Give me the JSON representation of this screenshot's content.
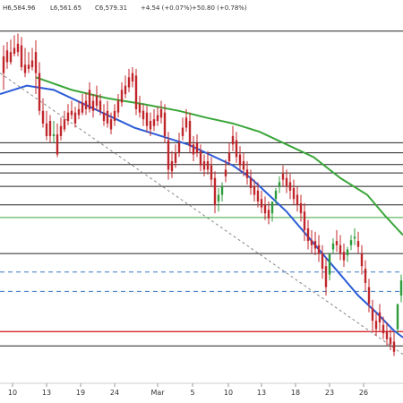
{
  "header": {
    "high": "H6,584.96",
    "low": "L6,561.65",
    "close": "C6,579.31",
    "change": "+4.54 (+0.07%)",
    "change2": "+50.80 (+0.78%)"
  },
  "colors": {
    "up": "#2e9b3a",
    "down": "#c0262b",
    "ma_blue": "#2a5bd7",
    "ma_green": "#3aa63a",
    "hline_black": "#222222",
    "hline_green": "#3aa63a",
    "hline_blue_dashed": "#3b78c4",
    "hline_red": "#d6242a",
    "trend_gray": "#888888"
  },
  "chart_data": {
    "type": "candlestick",
    "x_ticks": [
      "10",
      "13",
      "19",
      "24",
      "Mar",
      "5",
      "10",
      "13",
      "18",
      "23",
      "26"
    ],
    "y_range": [
      6560,
      6975
    ],
    "moving_averages": [
      {
        "color_key": "ma_blue",
        "points": [
          [
            0,
            6880
          ],
          [
            30,
            6890
          ],
          [
            60,
            6885
          ],
          [
            90,
            6870
          ],
          [
            120,
            6855
          ],
          [
            150,
            6840
          ],
          [
            180,
            6830
          ],
          [
            210,
            6820
          ],
          [
            240,
            6805
          ],
          [
            260,
            6795
          ],
          [
            280,
            6780
          ],
          [
            300,
            6760
          ],
          [
            320,
            6740
          ],
          [
            340,
            6715
          ],
          [
            360,
            6690
          ],
          [
            380,
            6665
          ],
          [
            400,
            6640
          ],
          [
            420,
            6620
          ],
          [
            440,
            6598
          ],
          [
            450,
            6590
          ]
        ]
      },
      {
        "color_key": "ma_green",
        "points": [
          [
            40,
            6900
          ],
          [
            80,
            6885
          ],
          [
            120,
            6875
          ],
          [
            160,
            6868
          ],
          [
            200,
            6860
          ],
          [
            230,
            6852
          ],
          [
            260,
            6845
          ],
          [
            290,
            6835
          ],
          [
            320,
            6820
          ],
          [
            350,
            6805
          ],
          [
            380,
            6780
          ],
          [
            410,
            6760
          ],
          [
            430,
            6735
          ],
          [
            450,
            6712
          ]
        ]
      }
    ],
    "horizontal_levels": [
      {
        "value": 6955,
        "color_key": "hline_black",
        "style": "solid"
      },
      {
        "value": 6822,
        "color_key": "hline_black",
        "style": "solid"
      },
      {
        "value": 6810,
        "color_key": "hline_black",
        "style": "solid"
      },
      {
        "value": 6796,
        "color_key": "hline_black",
        "style": "solid"
      },
      {
        "value": 6786,
        "color_key": "hline_black",
        "style": "solid"
      },
      {
        "value": 6770,
        "color_key": "hline_black",
        "style": "solid"
      },
      {
        "value": 6748,
        "color_key": "hline_black",
        "style": "solid"
      },
      {
        "value": 6733,
        "color_key": "hline_green",
        "style": "solid"
      },
      {
        "value": 6690,
        "color_key": "hline_black",
        "style": "solid"
      },
      {
        "value": 6668,
        "color_key": "hline_blue_dashed",
        "style": "dashed"
      },
      {
        "value": 6645,
        "color_key": "hline_blue_dashed",
        "style": "dashed"
      },
      {
        "value": 6597,
        "color_key": "hline_red",
        "style": "solid"
      },
      {
        "value": 6580,
        "color_key": "hline_black",
        "style": "solid"
      }
    ],
    "trendline": {
      "from": [
        0,
        6905
      ],
      "to": [
        450,
        6570
      ],
      "color_key": "trend_gray",
      "style": "dashed"
    },
    "candles": [
      [
        4,
        6925,
        6938,
        6905,
        6885
      ],
      [
        8,
        6932,
        6942,
        6918,
        6910
      ],
      [
        12,
        6930,
        6945,
        6918,
        6915
      ],
      [
        16,
        6935,
        6950,
        6928,
        6925
      ],
      [
        20,
        6940,
        6952,
        6930,
        6925
      ],
      [
        24,
        6938,
        6948,
        6912,
        6908
      ],
      [
        28,
        6915,
        6935,
        6905,
        6900
      ],
      [
        32,
        6915,
        6930,
        6910,
        6905
      ],
      [
        36,
        6920,
        6935,
        6912,
        6908
      ],
      [
        40,
        6930,
        6944,
        6905,
        6880
      ],
      [
        44,
        6905,
        6918,
        6860,
        6855
      ],
      [
        48,
        6860,
        6875,
        6845,
        6840
      ],
      [
        52,
        6845,
        6860,
        6830,
        6825
      ],
      [
        56,
        6848,
        6855,
        6830,
        6822
      ],
      [
        60,
        6830,
        6848,
        6832,
        6822
      ],
      [
        64,
        6832,
        6845,
        6808,
        6805
      ],
      [
        68,
        6842,
        6852,
        6830,
        6825
      ],
      [
        72,
        6850,
        6860,
        6838,
        6835
      ],
      [
        76,
        6858,
        6868,
        6848,
        6843
      ],
      [
        80,
        6860,
        6872,
        6855,
        6850
      ],
      [
        84,
        6858,
        6865,
        6845,
        6840
      ],
      [
        88,
        6862,
        6872,
        6855,
        6850
      ],
      [
        92,
        6870,
        6880,
        6858,
        6855
      ],
      [
        96,
        6872,
        6882,
        6862,
        6855
      ],
      [
        100,
        6885,
        6894,
        6862,
        6858
      ],
      [
        104,
        6872,
        6880,
        6860,
        6852
      ],
      [
        108,
        6878,
        6890,
        6866,
        6860
      ],
      [
        112,
        6872,
        6880,
        6860,
        6855
      ],
      [
        116,
        6858,
        6868,
        6848,
        6842
      ],
      [
        120,
        6860,
        6872,
        6845,
        6840
      ],
      [
        124,
        6850,
        6858,
        6838,
        6832
      ],
      [
        128,
        6860,
        6868,
        6848,
        6842
      ],
      [
        132,
        6872,
        6880,
        6858,
        6852
      ],
      [
        136,
        6885,
        6894,
        6870,
        6865
      ],
      [
        140,
        6890,
        6902,
        6880,
        6875
      ],
      [
        144,
        6900,
        6910,
        6888,
        6882
      ],
      [
        148,
        6905,
        6912,
        6895,
        6888
      ],
      [
        152,
        6902,
        6910,
        6862,
        6855
      ],
      [
        156,
        6868,
        6878,
        6858,
        6852
      ],
      [
        160,
        6860,
        6868,
        6850,
        6842
      ],
      [
        164,
        6858,
        6866,
        6842,
        6835
      ],
      [
        168,
        6848,
        6858,
        6838,
        6830
      ],
      [
        172,
        6850,
        6862,
        6842,
        6836
      ],
      [
        176,
        6855,
        6865,
        6848,
        6842
      ],
      [
        180,
        6862,
        6872,
        6852,
        6845
      ],
      [
        184,
        6858,
        6868,
        6830,
        6822
      ],
      [
        188,
        6825,
        6835,
        6790,
        6778
      ],
      [
        192,
        6800,
        6812,
        6788,
        6780
      ],
      [
        196,
        6810,
        6820,
        6798,
        6792
      ],
      [
        200,
        6822,
        6834,
        6810,
        6805
      ],
      [
        204,
        6840,
        6852,
        6830,
        6825
      ],
      [
        208,
        6852,
        6862,
        6840,
        6835
      ],
      [
        212,
        6848,
        6858,
        6818,
        6810
      ],
      [
        216,
        6820,
        6830,
        6808,
        6800
      ],
      [
        220,
        6822,
        6832,
        6810,
        6805
      ],
      [
        224,
        6812,
        6820,
        6795,
        6788
      ],
      [
        228,
        6800,
        6808,
        6790,
        6782
      ],
      [
        232,
        6800,
        6812,
        6790,
        6784
      ],
      [
        236,
        6795,
        6805,
        6778,
        6770
      ],
      [
        240,
        6780,
        6788,
        6748,
        6738
      ],
      [
        244,
        6752,
        6768,
        6760,
        6740
      ],
      [
        248,
        6760,
        6775,
        6770,
        6752
      ],
      [
        252,
        6790,
        6802,
        6782,
        6775
      ],
      [
        256,
        6810,
        6822,
        6800,
        6795
      ],
      [
        260,
        6830,
        6842,
        6820,
        6812
      ],
      [
        264,
        6825,
        6835,
        6805,
        6798
      ],
      [
        268,
        6808,
        6818,
        6795,
        6788
      ],
      [
        272,
        6800,
        6810,
        6790,
        6782
      ],
      [
        276,
        6790,
        6800,
        6780,
        6772
      ],
      [
        280,
        6780,
        6790,
        6768,
        6760
      ],
      [
        284,
        6770,
        6778,
        6760,
        6752
      ],
      [
        288,
        6765,
        6775,
        6752,
        6745
      ],
      [
        292,
        6755,
        6765,
        6745,
        6738
      ],
      [
        296,
        6748,
        6758,
        6738,
        6730
      ],
      [
        300,
        6742,
        6752,
        6732,
        6725
      ],
      [
        304,
        6738,
        6748,
        6752,
        6728
      ],
      [
        308,
        6755,
        6768,
        6765,
        6748
      ],
      [
        312,
        6770,
        6782,
        6775,
        6762
      ],
      [
        316,
        6785,
        6795,
        6778,
        6770
      ],
      [
        320,
        6780,
        6790,
        6770,
        6762
      ],
      [
        324,
        6775,
        6785,
        6765,
        6755
      ],
      [
        328,
        6768,
        6778,
        6755,
        6748
      ],
      [
        332,
        6760,
        6770,
        6748,
        6740
      ],
      [
        336,
        6750,
        6760,
        6738,
        6728
      ],
      [
        340,
        6740,
        6750,
        6718,
        6705
      ],
      [
        344,
        6720,
        6730,
        6705,
        6695
      ],
      [
        348,
        6706,
        6718,
        6700,
        6690
      ],
      [
        352,
        6705,
        6716,
        6696,
        6688
      ],
      [
        356,
        6700,
        6712,
        6690,
        6680
      ],
      [
        360,
        6690,
        6700,
        6672,
        6660
      ],
      [
        364,
        6675,
        6685,
        6650,
        6640
      ],
      [
        368,
        6665,
        6678,
        6690,
        6658
      ],
      [
        372,
        6695,
        6708,
        6702,
        6690
      ],
      [
        376,
        6705,
        6718,
        6700,
        6692
      ],
      [
        380,
        6700,
        6712,
        6690,
        6682
      ],
      [
        384,
        6692,
        6702,
        6682,
        6674
      ],
      [
        388,
        6688,
        6698,
        6695,
        6680
      ],
      [
        392,
        6700,
        6712,
        6706,
        6694
      ],
      [
        396,
        6708,
        6720,
        6710,
        6700
      ],
      [
        400,
        6705,
        6716,
        6698,
        6690
      ],
      [
        404,
        6690,
        6700,
        6675,
        6665
      ],
      [
        408,
        6672,
        6682,
        6655,
        6645
      ],
      [
        412,
        6650,
        6660,
        6630,
        6620
      ],
      [
        416,
        6625,
        6635,
        6610,
        6598
      ],
      [
        420,
        6610,
        6620,
        6600,
        6592
      ],
      [
        424,
        6620,
        6630,
        6608,
        6598
      ],
      [
        428,
        6605,
        6615,
        6595,
        6588
      ],
      [
        432,
        6598,
        6608,
        6588,
        6580
      ],
      [
        436,
        6590,
        6600,
        6582,
        6575
      ],
      [
        440,
        6585,
        6596,
        6573,
        6568
      ],
      [
        444,
        6600,
        6620,
        6630,
        6595
      ],
      [
        448,
        6640,
        6665,
        6658,
        6632
      ]
    ]
  }
}
